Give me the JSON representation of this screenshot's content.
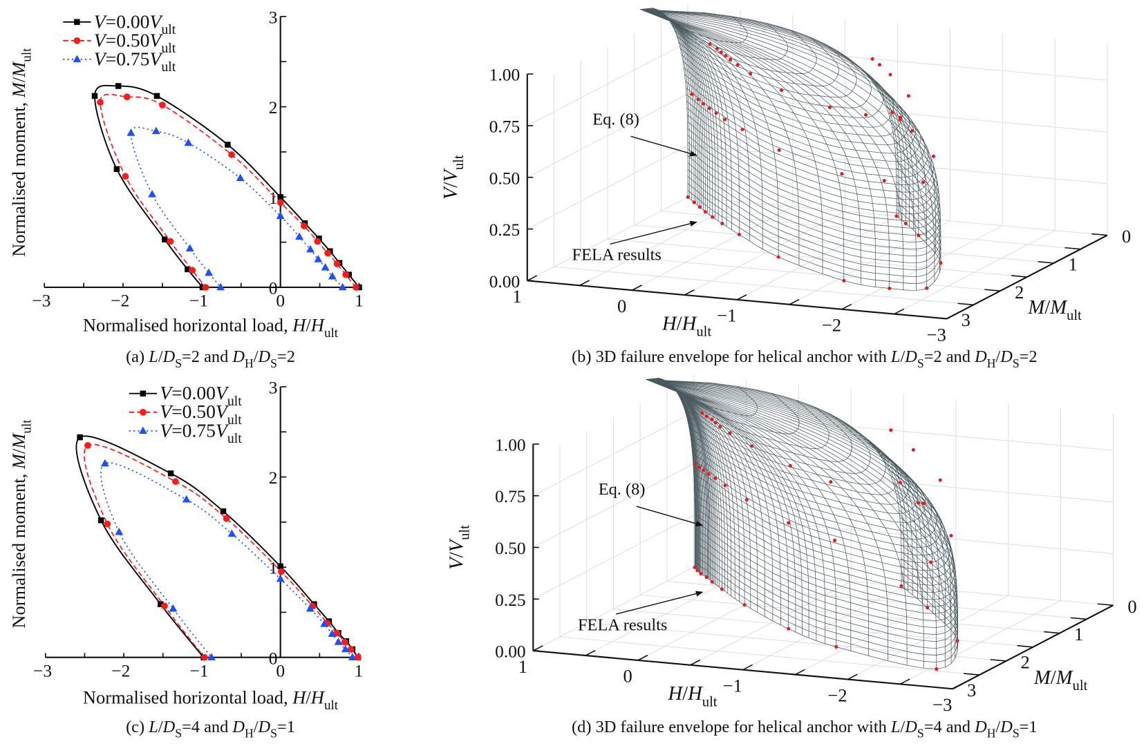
{
  "chart_data": [
    {
      "type": "line",
      "caption": [
        {
          "t": "(a) "
        },
        {
          "t": "L",
          "i": 1
        },
        {
          "t": "/"
        },
        {
          "t": "D",
          "i": 1
        },
        {
          "t": "S",
          "sub": 1
        },
        {
          "t": "=2 and "
        },
        {
          "t": "D",
          "i": 1
        },
        {
          "t": "H",
          "sub": 1
        },
        {
          "t": "/"
        },
        {
          "t": "D",
          "i": 1
        },
        {
          "t": "S",
          "sub": 1
        },
        {
          "t": "=2"
        }
      ],
      "xlabel": [
        {
          "t": "Normalised horizontal load, "
        },
        {
          "t": "H",
          "i": 1
        },
        {
          "t": "/"
        },
        {
          "t": "H",
          "i": 1
        },
        {
          "t": "ult",
          "sub": 1
        }
      ],
      "ylabel": [
        {
          "t": "Normalised moment, "
        },
        {
          "t": "M",
          "i": 1
        },
        {
          "t": "/"
        },
        {
          "t": "M",
          "i": 1
        },
        {
          "t": "ult",
          "sub": 1
        }
      ],
      "xlim": [
        -3,
        1
      ],
      "ylim": [
        0,
        3
      ],
      "xticks": [
        -3,
        -2,
        -1,
        0,
        1
      ],
      "xtick_labels": [
        "−3",
        "−2",
        "−1",
        "0",
        "1"
      ],
      "yticks": [
        0,
        1,
        2,
        3
      ],
      "ytick_labels": [
        "0",
        "1",
        "2",
        "3"
      ],
      "legend_position": "top-left",
      "series": [
        {
          "name": "V=0.00V_ult",
          "v_level": 0.0,
          "color": "#000000",
          "marker": "square",
          "dash": "solid",
          "label": [
            {
              "t": "V",
              "i": 1
            },
            {
              "t": "=0.00"
            },
            {
              "t": "V",
              "i": 1
            },
            {
              "t": "ult",
              "sub": 1
            }
          ],
          "points": [
            [
              1,
              0
            ],
            [
              0.87,
              0.14
            ],
            [
              0.75,
              0.27
            ],
            [
              0.63,
              0.4
            ],
            [
              0.49,
              0.54
            ],
            [
              0.31,
              0.71
            ],
            [
              0,
              1.0
            ],
            [
              -0.67,
              1.58
            ],
            [
              -1.57,
              2.12
            ],
            [
              -2.06,
              2.23
            ],
            [
              -2.36,
              2.12
            ],
            [
              -2.08,
              1.31
            ],
            [
              -1.47,
              0.53
            ],
            [
              -1.18,
              0.2
            ],
            [
              -0.99,
              0
            ]
          ]
        },
        {
          "name": "V=0.50V_ult",
          "v_level": 0.5,
          "color": "#ff1a1a",
          "marker": "circle",
          "dash": "dashed",
          "label": [
            {
              "t": "V",
              "i": 1
            },
            {
              "t": "=0.50"
            },
            {
              "t": "V",
              "i": 1
            },
            {
              "t": "ult",
              "sub": 1
            }
          ],
          "points": [
            [
              0.96,
              0
            ],
            [
              0.83,
              0.14
            ],
            [
              0.72,
              0.26
            ],
            [
              0.6,
              0.38
            ],
            [
              0.47,
              0.51
            ],
            [
              0.3,
              0.68
            ],
            [
              0,
              0.94
            ],
            [
              -0.62,
              1.47
            ],
            [
              -1.5,
              2.02
            ],
            [
              -1.95,
              2.11
            ],
            [
              -2.29,
              2.05
            ],
            [
              -1.97,
              1.23
            ],
            [
              -1.4,
              0.51
            ],
            [
              -1.12,
              0.19
            ],
            [
              -0.95,
              0
            ]
          ]
        },
        {
          "name": "V=0.75V_ult",
          "v_level": 0.75,
          "color": "#1f4fff",
          "marker": "triangle",
          "dash": "dotted",
          "label": [
            {
              "t": "V",
              "i": 1
            },
            {
              "t": "=0.75"
            },
            {
              "t": "V",
              "i": 1
            },
            {
              "t": "ult",
              "sub": 1
            }
          ],
          "points": [
            [
              0.79,
              0
            ],
            [
              0.66,
              0.12
            ],
            [
              0.57,
              0.22
            ],
            [
              0.48,
              0.31
            ],
            [
              0.38,
              0.42
            ],
            [
              0.24,
              0.56
            ],
            [
              0,
              0.79
            ],
            [
              -0.51,
              1.21
            ],
            [
              -1.17,
              1.6
            ],
            [
              -1.58,
              1.73
            ],
            [
              -1.9,
              1.71
            ],
            [
              -1.63,
              1.03
            ],
            [
              -1.15,
              0.43
            ],
            [
              -0.91,
              0.16
            ],
            [
              -0.76,
              0
            ]
          ]
        }
      ]
    },
    {
      "type": "surface3d",
      "caption": [
        {
          "t": "(b) 3D failure envelope for helical anchor with "
        },
        {
          "t": "L",
          "i": 1
        },
        {
          "t": "/"
        },
        {
          "t": "D",
          "i": 1
        },
        {
          "t": "S",
          "sub": 1
        },
        {
          "t": "=2 and "
        },
        {
          "t": "D",
          "i": 1
        },
        {
          "t": "H",
          "sub": 1
        },
        {
          "t": "/"
        },
        {
          "t": "D",
          "i": 1
        },
        {
          "t": "S",
          "sub": 1
        },
        {
          "t": "=2"
        }
      ],
      "xlabel": [
        {
          "t": "H",
          "i": 1
        },
        {
          "t": "/"
        },
        {
          "t": "H",
          "i": 1
        },
        {
          "t": "ult",
          "sub": 1
        }
      ],
      "ylabel": [
        {
          "t": "M",
          "i": 1
        },
        {
          "t": "/"
        },
        {
          "t": "M",
          "i": 1
        },
        {
          "t": "ult",
          "sub": 1
        }
      ],
      "zlabel": [
        {
          "t": "V",
          "i": 1
        },
        {
          "t": "/"
        },
        {
          "t": "V",
          "i": 1
        },
        {
          "t": "ult",
          "sub": 1
        }
      ],
      "xticks": [
        1,
        0,
        -1,
        -2,
        -3
      ],
      "xtick_labels": [
        "1",
        "0",
        "−1",
        "−2",
        "−3"
      ],
      "yticks": [
        0,
        1,
        2,
        3
      ],
      "ytick_labels": [
        "0",
        "1",
        "2",
        "3"
      ],
      "zticks": [
        0,
        0.25,
        0.5,
        0.75,
        1.0
      ],
      "ztick_labels": [
        "0.00",
        "0.25",
        "0.50",
        "0.75",
        "1.00"
      ],
      "xlim": [
        1,
        -3
      ],
      "ylim": [
        0,
        3
      ],
      "zlim": [
        0,
        1
      ],
      "annotations": {
        "surface": "Eq. (8)",
        "points": "FELA results"
      },
      "surface_color": "#4a5a60",
      "point_color": "#e41a1c",
      "fela_from_panel": 0
    },
    {
      "type": "line",
      "caption": [
        {
          "t": "(c) "
        },
        {
          "t": "L",
          "i": 1
        },
        {
          "t": "/"
        },
        {
          "t": "D",
          "i": 1
        },
        {
          "t": "S",
          "sub": 1
        },
        {
          "t": "=4 and "
        },
        {
          "t": "D",
          "i": 1
        },
        {
          "t": "H",
          "sub": 1
        },
        {
          "t": "/"
        },
        {
          "t": "D",
          "i": 1
        },
        {
          "t": "S",
          "sub": 1
        },
        {
          "t": "=1"
        }
      ],
      "xlabel": [
        {
          "t": "Normalised horizontal load, "
        },
        {
          "t": "H",
          "i": 1
        },
        {
          "t": "/"
        },
        {
          "t": "H",
          "i": 1
        },
        {
          "t": "ult",
          "sub": 1
        }
      ],
      "ylabel": [
        {
          "t": "Normalised moment, "
        },
        {
          "t": "M",
          "i": 1
        },
        {
          "t": "/"
        },
        {
          "t": "M",
          "i": 1
        },
        {
          "t": "ult",
          "sub": 1
        }
      ],
      "xlim": [
        -3,
        1
      ],
      "ylim": [
        0,
        3
      ],
      "xticks": [
        -3,
        -2,
        -1,
        0,
        1
      ],
      "xtick_labels": [
        "−3",
        "−2",
        "−1",
        "0",
        "1"
      ],
      "yticks": [
        0,
        1,
        2,
        3
      ],
      "ytick_labels": [
        "0",
        "1",
        "2",
        "3"
      ],
      "legend_position": "top-center",
      "series": [
        {
          "name": "V=0.00V_ult",
          "v_level": 0.0,
          "color": "#000000",
          "marker": "square",
          "dash": "solid",
          "label": [
            {
              "t": "V",
              "i": 1
            },
            {
              "t": "=0.00"
            },
            {
              "t": "V",
              "i": 1
            },
            {
              "t": "ult",
              "sub": 1
            }
          ],
          "points": [
            [
              0.99,
              0
            ],
            [
              0.92,
              0.09
            ],
            [
              0.84,
              0.18
            ],
            [
              0.74,
              0.27
            ],
            [
              0.62,
              0.4
            ],
            [
              0.43,
              0.59
            ],
            [
              0,
              1.01
            ],
            [
              -0.73,
              1.62
            ],
            [
              -1.4,
              2.04
            ],
            [
              -2.56,
              2.44
            ],
            [
              -2.29,
              1.52
            ],
            [
              -1.53,
              0.59
            ],
            [
              -0.98,
              0
            ]
          ]
        },
        {
          "name": "V=0.50V_ult",
          "v_level": 0.5,
          "color": "#ff1a1a",
          "marker": "circle",
          "dash": "dashed",
          "label": [
            {
              "t": "V",
              "i": 1
            },
            {
              "t": "=0.50"
            },
            {
              "t": "V",
              "i": 1
            },
            {
              "t": "ult",
              "sub": 1
            }
          ],
          "points": [
            [
              0.99,
              0
            ],
            [
              0.9,
              0.09
            ],
            [
              0.82,
              0.17
            ],
            [
              0.72,
              0.27
            ],
            [
              0.6,
              0.38
            ],
            [
              0.41,
              0.57
            ],
            [
              0.01,
              0.95
            ],
            [
              -0.69,
              1.54
            ],
            [
              -1.34,
              1.95
            ],
            [
              -2.46,
              2.35
            ],
            [
              -2.21,
              1.48
            ],
            [
              -1.48,
              0.57
            ],
            [
              -0.97,
              0
            ]
          ]
        },
        {
          "name": "V=0.75V_ult",
          "v_level": 0.75,
          "color": "#1f4fff",
          "marker": "triangle",
          "dash": "dotted",
          "label": [
            {
              "t": "V",
              "i": 1
            },
            {
              "t": "=0.75"
            },
            {
              "t": "V",
              "i": 1
            },
            {
              "t": "ult",
              "sub": 1
            }
          ],
          "points": [
            [
              0.92,
              0
            ],
            [
              0.83,
              0.09
            ],
            [
              0.74,
              0.17
            ],
            [
              0.66,
              0.26
            ],
            [
              0.56,
              0.37
            ],
            [
              0.38,
              0.54
            ],
            [
              0,
              0.87
            ],
            [
              -0.62,
              1.37
            ],
            [
              -1.2,
              1.75
            ],
            [
              -2.24,
              2.15
            ],
            [
              -2.06,
              1.39
            ],
            [
              -1.37,
              0.54
            ],
            [
              -0.88,
              0
            ]
          ]
        }
      ]
    },
    {
      "type": "surface3d",
      "caption": [
        {
          "t": "(d) 3D failure envelope for helical anchor with "
        },
        {
          "t": "L",
          "i": 1
        },
        {
          "t": "/"
        },
        {
          "t": "D",
          "i": 1
        },
        {
          "t": "S",
          "sub": 1
        },
        {
          "t": "=4 and "
        },
        {
          "t": "D",
          "i": 1
        },
        {
          "t": "H",
          "sub": 1
        },
        {
          "t": "/"
        },
        {
          "t": "D",
          "i": 1
        },
        {
          "t": "S",
          "sub": 1
        },
        {
          "t": "=1"
        }
      ],
      "xlabel": [
        {
          "t": "H",
          "i": 1
        },
        {
          "t": "/"
        },
        {
          "t": "H",
          "i": 1
        },
        {
          "t": "ult",
          "sub": 1
        }
      ],
      "ylabel": [
        {
          "t": "M",
          "i": 1
        },
        {
          "t": "/"
        },
        {
          "t": "M",
          "i": 1
        },
        {
          "t": "ult",
          "sub": 1
        }
      ],
      "zlabel": [
        {
          "t": "V",
          "i": 1
        },
        {
          "t": "/"
        },
        {
          "t": "V",
          "i": 1
        },
        {
          "t": "ult",
          "sub": 1
        }
      ],
      "xticks": [
        1,
        0,
        -1,
        -2,
        -3
      ],
      "xtick_labels": [
        "1",
        "0",
        "−1",
        "−2",
        "−3"
      ],
      "yticks": [
        0,
        1,
        2,
        3
      ],
      "ytick_labels": [
        "0",
        "1",
        "2",
        "3"
      ],
      "zticks": [
        0,
        0.25,
        0.5,
        0.75,
        1.0
      ],
      "ztick_labels": [
        "0.00",
        "0.25",
        "0.50",
        "0.75",
        "1.00"
      ],
      "xlim": [
        1,
        -3
      ],
      "ylim": [
        0,
        3
      ],
      "zlim": [
        0,
        1
      ],
      "annotations": {
        "surface": "Eq. (8)",
        "points": "FELA results"
      },
      "surface_color": "#4a5a60",
      "point_color": "#e41a1c",
      "fela_from_panel": 2
    }
  ]
}
